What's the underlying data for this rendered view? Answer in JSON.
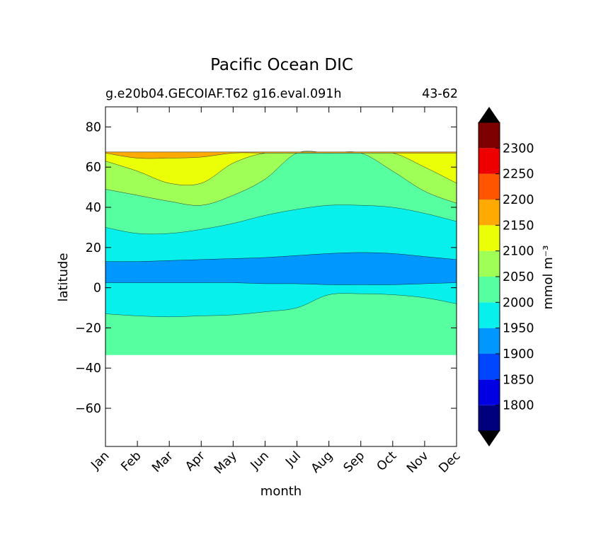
{
  "chart_data": {
    "type": "filled-contour",
    "title": "Pacific Ocean DIC",
    "subtitle_left": "g.e20b04.GECOIAF.T62 g16.eval.091h",
    "subtitle_right": "43-62",
    "xlabel": "month",
    "ylabel": "latitude",
    "x_ticks": [
      "Jan",
      "Feb",
      "Mar",
      "Apr",
      "May",
      "Jun",
      "Jul",
      "Aug",
      "Sep",
      "Oct",
      "Nov",
      "Dec"
    ],
    "y_ticks": [
      80,
      60,
      40,
      20,
      0,
      -20,
      -40,
      -60
    ],
    "y_tick_labels": [
      "80",
      "60",
      "40",
      "20",
      "0",
      "−20",
      "−40",
      "−60"
    ],
    "ylim": [
      -79,
      90
    ],
    "data_lat_range": [
      -33.5,
      67.5
    ],
    "colorbar": {
      "label": "mmol m⁻³",
      "levels": [
        1750,
        1800,
        1850,
        1900,
        1950,
        2000,
        2050,
        2100,
        2150,
        2200,
        2250,
        2300,
        2350
      ],
      "tick_values": [
        1800,
        1850,
        1900,
        1950,
        2000,
        2050,
        2100,
        2150,
        2200,
        2250,
        2300
      ],
      "colors": [
        "#00007f",
        "#0000e3",
        "#0046ff",
        "#0098ff",
        "#07f0eb",
        "#56ffa0",
        "#a0ff56",
        "#ebff07",
        "#ffaa00",
        "#ff5400",
        "#ee0000",
        "#7f0000"
      ],
      "extend_low_color": "#000000",
      "extend_high_color": "#000000"
    },
    "bands": [
      {
        "min": 1900,
        "max": 1950,
        "color": "#0098ff",
        "upper_boundary": [
          13,
          13,
          13.5,
          14,
          14.5,
          15,
          16,
          17,
          17.5,
          17,
          15.5,
          14
        ],
        "lower_boundary": [
          2.5,
          2.5,
          2.5,
          2.5,
          2.5,
          2,
          2,
          1.5,
          1.5,
          1.5,
          2,
          2.5
        ]
      },
      {
        "min": 1950,
        "max": 2000,
        "color": "#07f0eb",
        "north_upper_boundary": [
          30,
          27,
          27,
          29,
          32,
          36,
          39,
          41,
          41,
          40,
          37,
          33
        ],
        "south_lower_boundary": [
          -13,
          -14,
          -14.5,
          -14,
          -13.5,
          -12,
          -10,
          -3.5,
          -3,
          -3.5,
          -5,
          -8
        ]
      },
      {
        "min": 2050,
        "max": 2100,
        "color": "#a0ff56",
        "boundary": [
          49,
          46,
          43,
          41,
          46,
          54,
          67,
          67,
          67,
          58,
          48,
          42
        ]
      },
      {
        "min": 2100,
        "max": 2150,
        "color": "#ebff07",
        "boundary": [
          63,
          58,
          52,
          52,
          62,
          67,
          67,
          67,
          67,
          67,
          60,
          52
        ]
      },
      {
        "min": 2150,
        "max": 2200,
        "color": "#ffaa00",
        "boundary": [
          67,
          64.5,
          64.5,
          65,
          67,
          67,
          67,
          67,
          67,
          67,
          67,
          67
        ]
      }
    ]
  }
}
